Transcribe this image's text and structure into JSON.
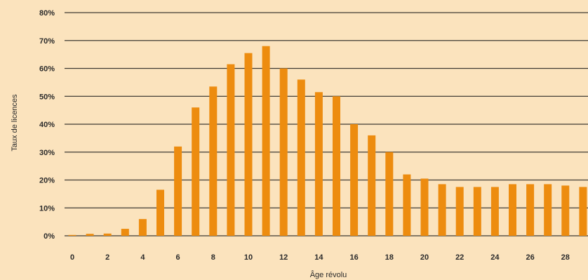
{
  "chart_data": {
    "type": "bar",
    "xlabel": "Âge révolu",
    "ylabel": "Taux de licences",
    "ylim": [
      0,
      80
    ],
    "y_ticks": [
      "0%",
      "10%",
      "20%",
      "30%",
      "40%",
      "50%",
      "60%",
      "70%",
      "80%"
    ],
    "x_ticks": [
      "0",
      "2",
      "4",
      "6",
      "8",
      "10",
      "12",
      "14",
      "16",
      "18",
      "20",
      "22",
      "24",
      "26",
      "28"
    ],
    "categories": [
      0,
      1,
      2,
      3,
      4,
      5,
      6,
      7,
      8,
      9,
      10,
      11,
      12,
      13,
      14,
      15,
      16,
      17,
      18,
      19,
      20,
      21,
      22,
      23,
      24,
      25,
      26,
      27,
      28,
      29
    ],
    "values": [
      0.3,
      0.7,
      0.8,
      2.5,
      6,
      16.5,
      32,
      46,
      53.5,
      61.5,
      65.5,
      68,
      60,
      56,
      51.5,
      50,
      40,
      36,
      30,
      22,
      20.5,
      18.5,
      17.5,
      17.5,
      17.5,
      18.5,
      18.5,
      18.5,
      18,
      17.5
    ],
    "grid": true,
    "legend": "none",
    "colors": {
      "bar": "#ed8c0f",
      "grid": "#3f3a33",
      "background": "#fbe3bd"
    }
  }
}
